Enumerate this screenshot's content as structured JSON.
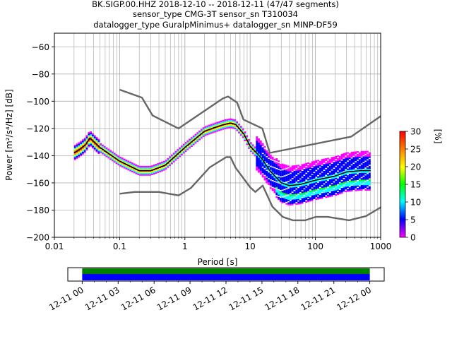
{
  "title": {
    "line1": "BK.SIGP.00.HHZ   2018-12-10 -- 2018-12-11  (47/47 segments)",
    "line2": "sensor_type CMG-3T sensor_sn T310034",
    "line3": "datalogger_type GuralpMinimus+ datalogger_sn MINP-DF59"
  },
  "colors": {
    "mean_line": "#000000",
    "noise_model": "#666666",
    "coverage_green": "#008000",
    "coverage_blue": "#0000ff",
    "grid": "#b0b0b0"
  },
  "chart_data": [
    {
      "type": "heatmap",
      "title": "BK.SIGP.00.HHZ   2018-12-10 -- 2018-12-11  (47/47 segments)",
      "xlabel": "Period [s]",
      "ylabel": "Power [m²/s⁴/Hz] [dB]",
      "xscale": "log",
      "xlim": [
        0.01,
        1000
      ],
      "ylim": [
        -200,
        -50
      ],
      "x_tick_labels": [
        "0.01",
        "0.1",
        "1",
        "10",
        "100",
        "1000"
      ],
      "x_tick_values": [
        0.01,
        0.1,
        1,
        10,
        100,
        1000
      ],
      "y_ticks": [
        -200,
        -180,
        -160,
        -140,
        -120,
        -100,
        -80,
        -60
      ],
      "grid": true,
      "colorbar": {
        "label": "[%]",
        "ticks": [
          0,
          5,
          10,
          15,
          20,
          25,
          30
        ],
        "range": [
          0,
          30
        ],
        "colormap": [
          "#ff00ff",
          "#0000ff",
          "#00ffff",
          "#00ff00",
          "#ffff00",
          "#ff8000",
          "#ff0000"
        ]
      },
      "series": [
        {
          "name": "mean",
          "x": [
            0.02,
            0.025,
            0.03,
            0.035,
            0.05,
            0.1,
            0.2,
            0.3,
            0.5,
            1,
            2,
            3,
            4,
            5,
            6,
            8,
            10,
            15,
            20,
            30,
            40,
            60,
            100,
            200,
            300,
            500,
            700
          ],
          "y": [
            -138,
            -135,
            -132,
            -127,
            -134,
            -144,
            -151,
            -151,
            -147,
            -134,
            -122,
            -119,
            -117,
            -116,
            -117,
            -124,
            -133,
            -142,
            -151,
            -160,
            -162,
            -161,
            -158,
            -155,
            -152,
            -151,
            -151
          ]
        },
        {
          "name": "high noise model",
          "x": [
            0.1,
            0.22,
            0.32,
            0.8,
            3.8,
            4.6,
            6.3,
            7.9,
            15.4,
            20,
            354.8,
            1000
          ],
          "y": [
            -91.5,
            -97.4,
            -110.5,
            -120,
            -98,
            -96.5,
            -101,
            -113.5,
            -120,
            -138,
            -126,
            -111
          ]
        },
        {
          "name": "low noise model",
          "x": [
            0.1,
            0.17,
            0.4,
            0.8,
            1.24,
            2.4,
            4.3,
            5,
            6,
            10,
            12,
            15.6,
            21.9,
            31.6,
            45,
            70,
            101,
            154,
            328,
            600,
            1000
          ],
          "y": [
            -168,
            -166.7,
            -166.7,
            -169.2,
            -163.7,
            -148.6,
            -141.1,
            -141.1,
            -149,
            -163.2,
            -166.7,
            -162,
            -177.5,
            -185,
            -187.5,
            -187.5,
            -185,
            -185,
            -187.5,
            -184.4,
            -178
          ]
        }
      ]
    },
    {
      "type": "bar",
      "title": "",
      "x_tick_labels": [
        "12-11 00",
        "12-11 03",
        "12-11 06",
        "12-11 09",
        "12-11 12",
        "12-11 15",
        "12-11 18",
        "12-11 21",
        "12-12 00"
      ],
      "x_tick_hours": [
        0,
        3,
        6,
        9,
        12,
        15,
        18,
        21,
        24
      ],
      "xlim_hours": [
        -1.2,
        25.2
      ],
      "series": [
        {
          "name": "",
          "start_hour": 0,
          "end_hour": 24,
          "color": "#008000"
        },
        {
          "name": "",
          "start_hour": 0,
          "end_hour": 24,
          "color": "#0000ff"
        }
      ]
    }
  ]
}
